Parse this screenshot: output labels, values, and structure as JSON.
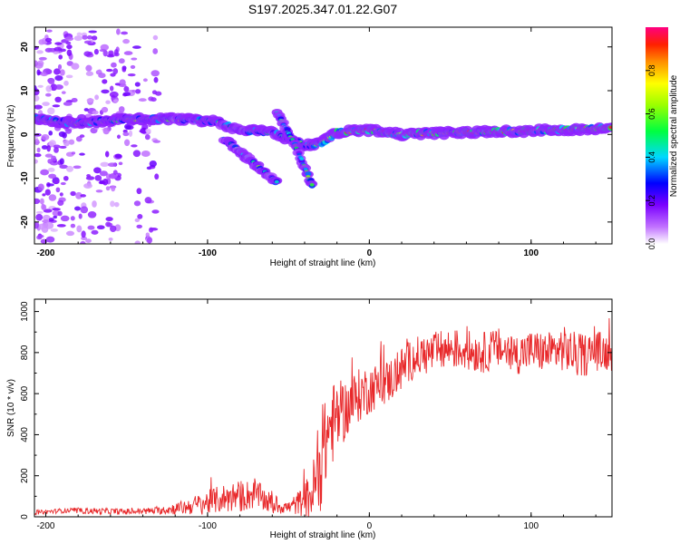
{
  "figure_title": "S197.2025.347.01.22.G07",
  "colors": {
    "snr_line": "#e8282a",
    "colormap": [
      "#ffffff",
      "#a020f0",
      "#0000ff",
      "#00ffff",
      "#00ff00",
      "#ffff00",
      "#ff8c00",
      "#ff0000",
      "#ff0080"
    ]
  },
  "chart_data": [
    {
      "type": "heatmap",
      "name": "spectrogram",
      "title": "S197.2025.347.01.22.G07",
      "xlabel": "Height of straight line (km)",
      "ylabel": "Frequency (Hz)",
      "xlim": [
        -207,
        150
      ],
      "ylim": [
        -25,
        24.5
      ],
      "xticks": [
        -200,
        -100,
        0,
        100
      ],
      "xtick_labels": [
        "-200",
        "-100",
        "0",
        "100"
      ],
      "yticks": [
        20,
        10,
        0,
        -10,
        -20
      ],
      "ytick_labels": [
        "20",
        "10",
        "0",
        "-10",
        "-20"
      ],
      "features": [
        {
          "name": "noise region",
          "x": [
            -207,
            -130
          ],
          "y": [
            -25,
            24
          ],
          "amplitude": 0.1
        },
        {
          "name": "main track",
          "points": [
            [
              -207,
              3.5
            ],
            [
              -180,
              2.5
            ],
            [
              -150,
              3.5
            ],
            [
              -120,
              3.5
            ],
            [
              -95,
              3.0
            ],
            [
              -80,
              1.0
            ],
            [
              -60,
              0.5
            ],
            [
              -40,
              -2.5
            ],
            [
              -30,
              -2.0
            ],
            [
              -20,
              0.5
            ],
            [
              0,
              1.0
            ],
            [
              20,
              0.0
            ],
            [
              60,
              0.5
            ],
            [
              100,
              0.8
            ],
            [
              150,
              1.5
            ]
          ],
          "amplitude": 0.7
        },
        {
          "name": "descending branch 1",
          "points": [
            [
              -90,
              -1
            ],
            [
              -70,
              -7
            ],
            [
              -57,
              -11
            ]
          ],
          "amplitude": 0.5
        },
        {
          "name": "descending branch 2",
          "points": [
            [
              -57,
              5
            ],
            [
              -45,
              -3
            ],
            [
              -35,
              -12
            ]
          ],
          "amplitude": 0.5
        }
      ],
      "colorbar": {
        "label": "Normalized spectral amplitude",
        "range": [
          0,
          1
        ],
        "ticks": [
          0.0,
          0.2,
          0.4,
          0.6,
          0.8
        ],
        "tick_labels": [
          "0.0",
          "0.2",
          "0.4",
          "0.6",
          "0.8"
        ]
      }
    },
    {
      "type": "line",
      "name": "snr",
      "xlabel": "Height of straight line (km)",
      "ylabel": "SNR (10 * v/v)",
      "xlim": [
        -207,
        150
      ],
      "ylim": [
        0,
        1060
      ],
      "xticks": [
        -200,
        -100,
        0,
        100
      ],
      "xtick_labels": [
        "-200",
        "-100",
        "0",
        "100"
      ],
      "yticks": [
        0,
        200,
        400,
        600,
        800,
        1000
      ],
      "ytick_labels": [
        "0",
        "200",
        "400",
        "600",
        "800",
        "1000"
      ],
      "series": [
        {
          "name": "SNR",
          "x": [
            -207,
            -190,
            -170,
            -150,
            -130,
            -115,
            -100,
            -90,
            -80,
            -70,
            -60,
            -50,
            -40,
            -35,
            -30,
            -25,
            -20,
            -15,
            -10,
            -5,
            0,
            5,
            10,
            15,
            20,
            25,
            30,
            40,
            50,
            60,
            70,
            80,
            90,
            100,
            110,
            120,
            130,
            140,
            150
          ],
          "values": [
            20,
            30,
            28,
            25,
            30,
            45,
            70,
            90,
            100,
            110,
            60,
            45,
            80,
            120,
            250,
            430,
            480,
            520,
            560,
            600,
            620,
            640,
            650,
            680,
            720,
            760,
            780,
            800,
            820,
            810,
            800,
            820,
            790,
            810,
            800,
            820,
            780,
            810,
            800
          ],
          "noise_amplitude": [
            10,
            12,
            15,
            15,
            18,
            35,
            60,
            70,
            80,
            70,
            50,
            30,
            80,
            150,
            220,
            220,
            180,
            150,
            140,
            130,
            120,
            110,
            110,
            110,
            110,
            100,
            100,
            100,
            100,
            100,
            100,
            100,
            100,
            100,
            100,
            110,
            110,
            100,
            90
          ]
        }
      ]
    }
  ]
}
